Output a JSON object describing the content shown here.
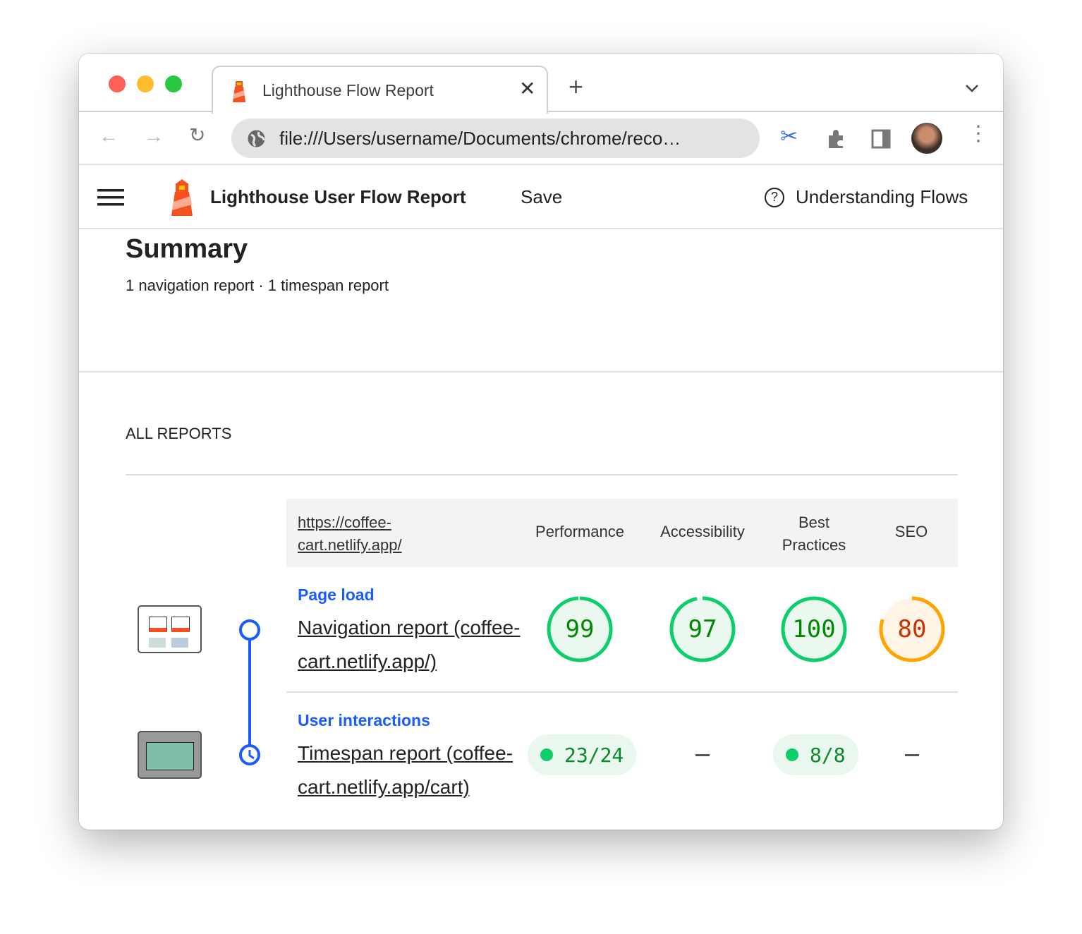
{
  "browser": {
    "tab_title": "Lighthouse Flow Report",
    "url": "file:///Users/username/Documents/chrome/reco…"
  },
  "header": {
    "title": "Lighthouse User Flow Report",
    "save": "Save",
    "help": "Understanding Flows"
  },
  "summary": {
    "title": "Summary",
    "subtitle": "1 navigation report · 1 timespan report"
  },
  "all_reports": {
    "label": "ALL REPORTS",
    "columns": {
      "url": "https://coffee-cart.netlify.app/",
      "performance": "Performance",
      "accessibility": "Accessibility",
      "best_practices": "Best Practices",
      "seo": "SEO"
    },
    "rows": [
      {
        "group": "Page load",
        "report": "Navigation report (coffee-cart.netlify.app/)",
        "scores": {
          "performance": 99,
          "accessibility": 97,
          "best_practices": 100,
          "seo": 80
        }
      },
      {
        "group": "User interactions",
        "report": "Timespan report (coffee-cart.netlify.app/cart)",
        "scores": {
          "performance": "23/24",
          "accessibility": "–",
          "best_practices": "8/8",
          "seo": "–"
        }
      }
    ]
  },
  "colors": {
    "pass": "#0cce6b",
    "average": "#ffa400",
    "pass_text": "#008800",
    "average_text": "#c33300",
    "accent": "#1a5cff"
  }
}
